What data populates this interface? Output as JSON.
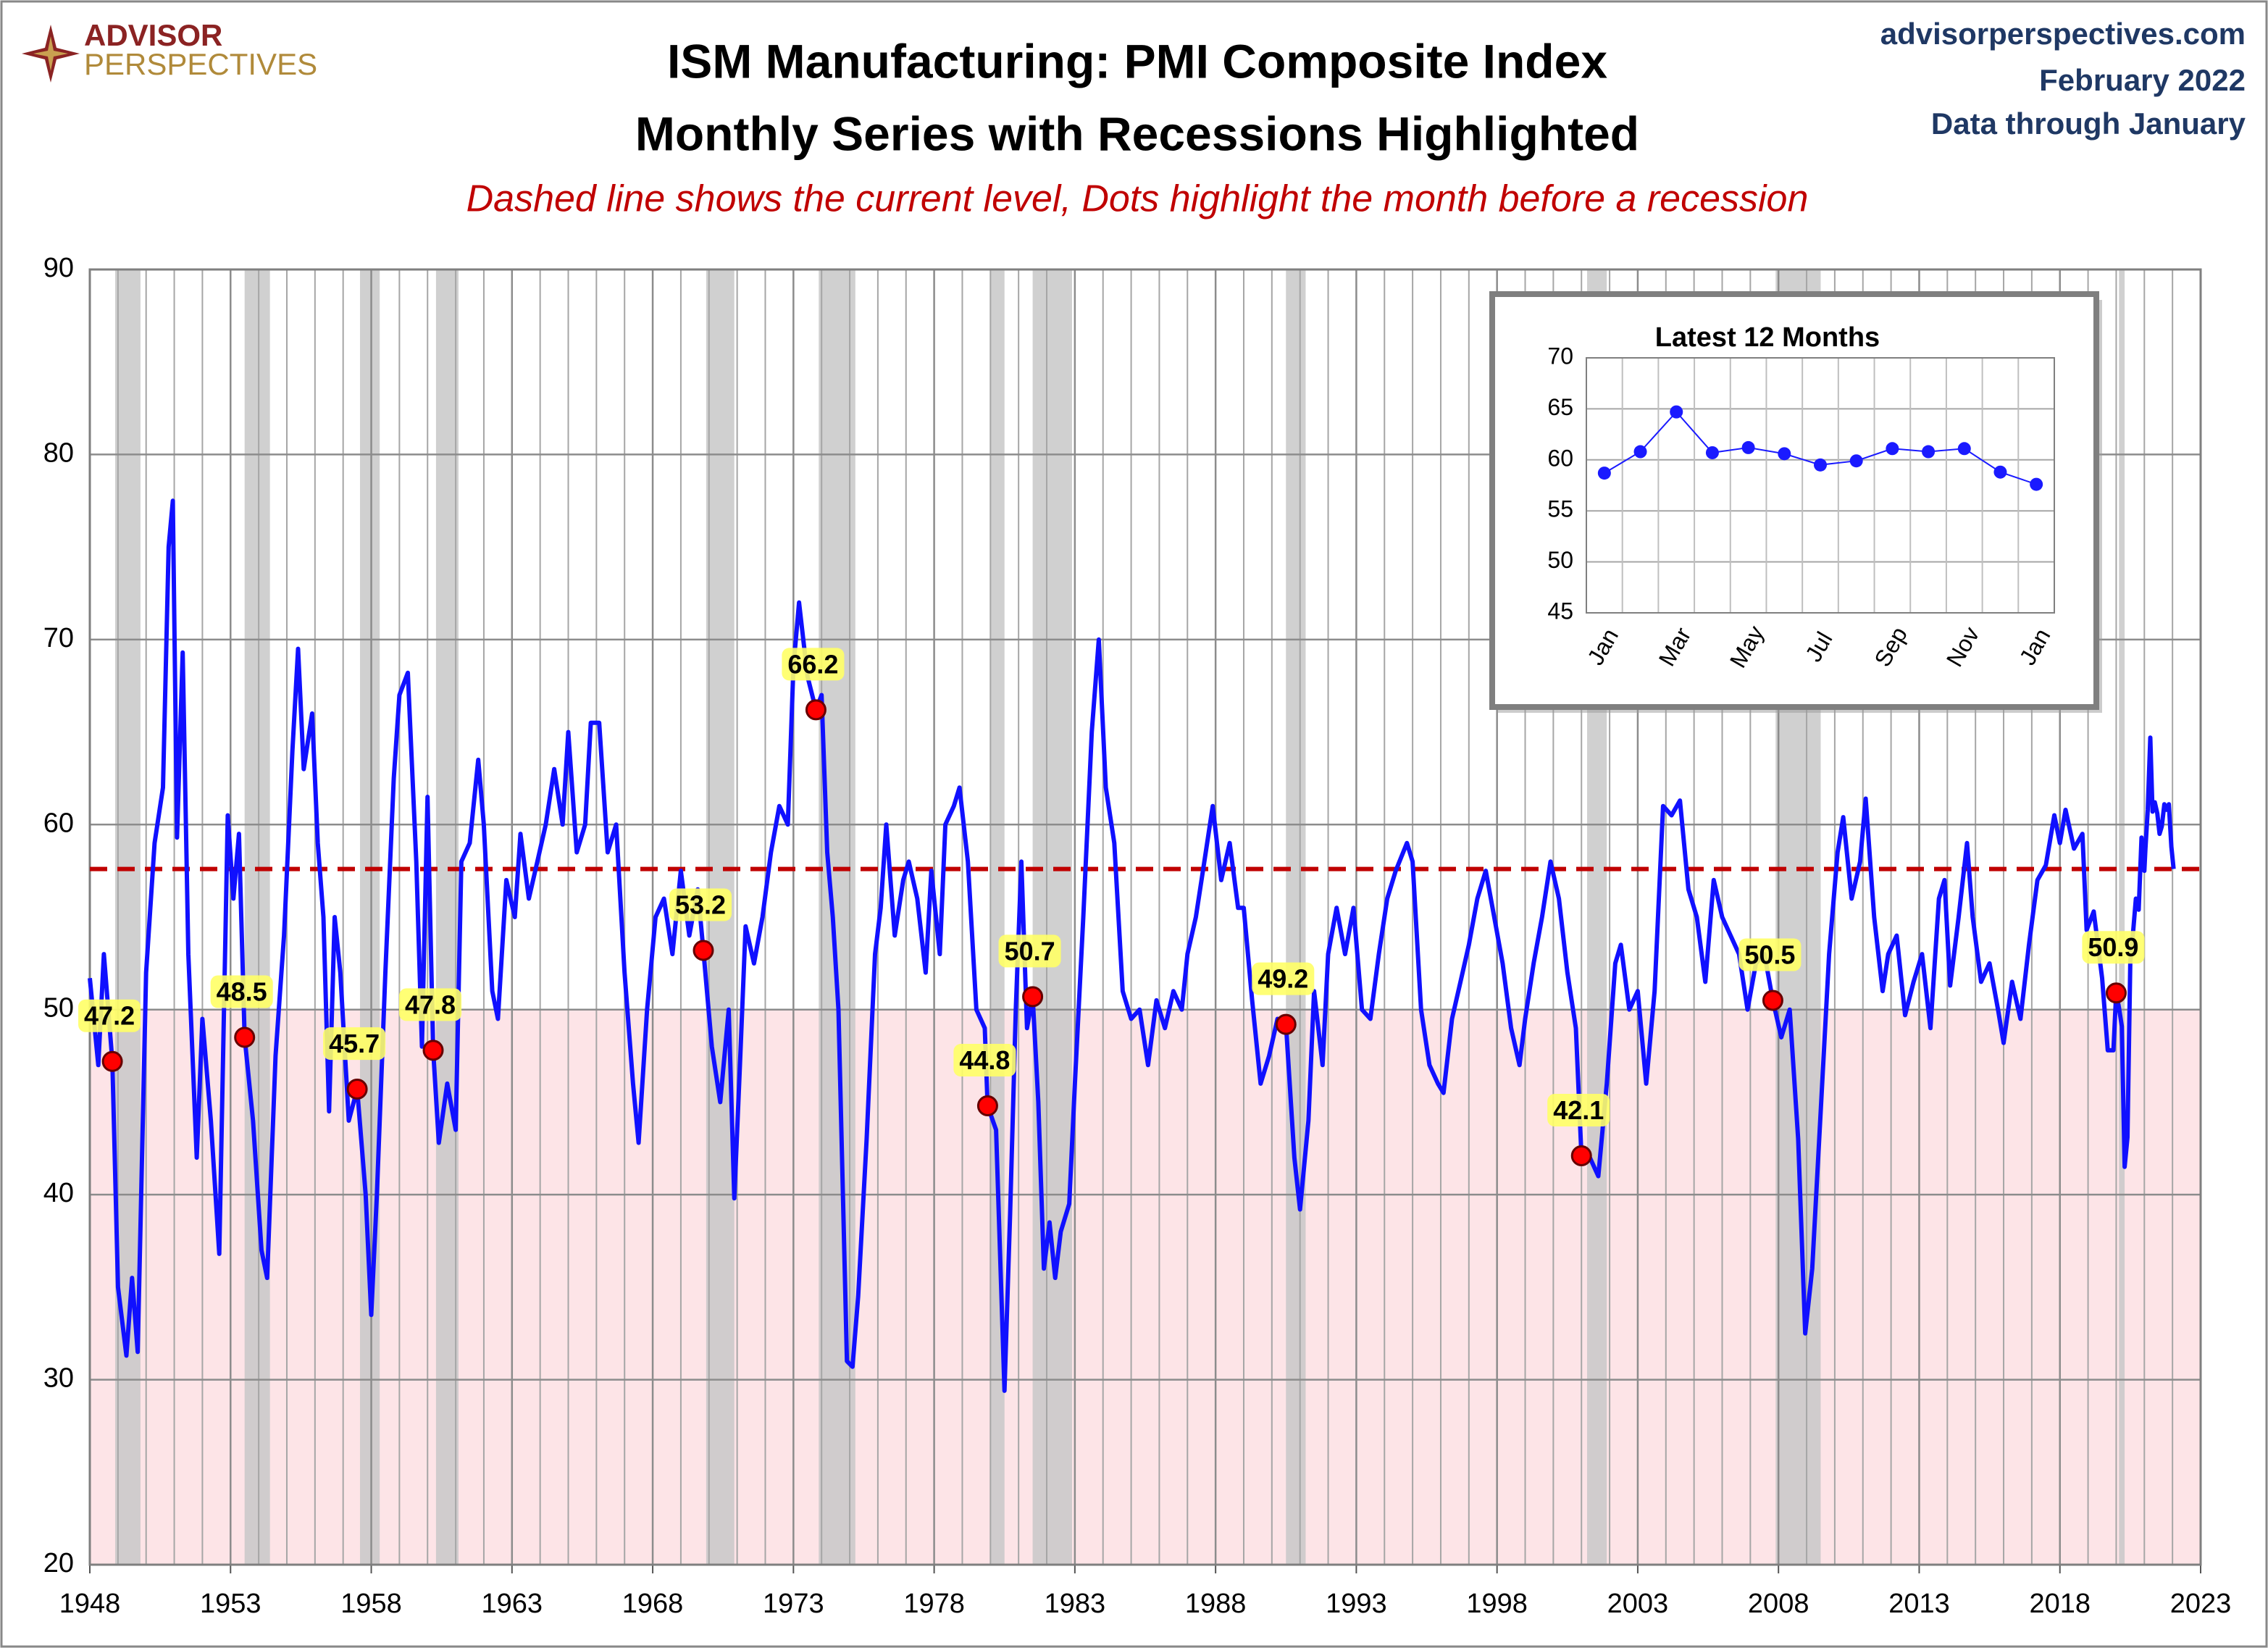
{
  "header": {
    "brand": [
      "ADVISOR",
      "PERSPECTIVES"
    ],
    "site": "advisorperspectives.com",
    "date": "February 2022",
    "data_through": "Data through January"
  },
  "chart_data": [
    {
      "type": "line",
      "title": "ISM Manufacturing: PMI Composite Index",
      "subtitle": "Monthly Series with Recessions Highlighted",
      "note": "Dashed line shows the current level, Dots highlight the month before a recession",
      "color": "#1010ff",
      "xlim": [
        1948,
        2023
      ],
      "xticks": [
        1948,
        1953,
        1958,
        1963,
        1968,
        1973,
        1978,
        1983,
        1988,
        1993,
        1998,
        2003,
        2008,
        2013,
        2018,
        2023
      ],
      "ylim": [
        20,
        90
      ],
      "yticks": [
        20,
        30,
        40,
        50,
        60,
        70,
        80,
        90
      ],
      "grid": true,
      "shaded_below": 50,
      "shaded_color": "#fde4e7",
      "reference_line": 57.6,
      "reference_color": "#c00000",
      "recession_color": "#c8c8c8",
      "recessions": [
        [
          1948.9,
          1949.8
        ],
        [
          1953.5,
          1954.4
        ],
        [
          1957.6,
          1958.3
        ],
        [
          1960.3,
          1961.1
        ],
        [
          1969.9,
          1970.9
        ],
        [
          1973.9,
          1975.2
        ],
        [
          1980.0,
          1980.5
        ],
        [
          1981.5,
          1982.9
        ],
        [
          1990.5,
          1991.2
        ],
        [
          2001.2,
          2001.9
        ],
        [
          2007.9,
          2009.5
        ],
        [
          2020.1,
          2020.3
        ]
      ],
      "x": [
        1948.0,
        1948.3,
        1948.5,
        1948.8,
        1949.0,
        1949.3,
        1949.5,
        1949.7,
        1950.0,
        1950.3,
        1950.6,
        1950.8,
        1950.95,
        1951.1,
        1951.3,
        1951.5,
        1951.8,
        1952.0,
        1952.3,
        1952.6,
        1952.9,
        1953.1,
        1953.3,
        1953.5,
        1953.8,
        1954.1,
        1954.3,
        1954.6,
        1954.9,
        1955.2,
        1955.4,
        1955.6,
        1955.9,
        1956.1,
        1956.3,
        1956.5,
        1956.7,
        1956.9,
        1957.2,
        1957.5,
        1957.8,
        1958.0,
        1958.2,
        1958.5,
        1958.8,
        1959.0,
        1959.3,
        1959.6,
        1959.8,
        1960.0,
        1960.2,
        1960.4,
        1960.7,
        1961.0,
        1961.2,
        1961.5,
        1961.8,
        1962.0,
        1962.3,
        1962.5,
        1962.8,
        1963.1,
        1963.3,
        1963.6,
        1963.9,
        1964.2,
        1964.5,
        1964.8,
        1965.0,
        1965.3,
        1965.6,
        1965.8,
        1966.1,
        1966.4,
        1966.7,
        1967.0,
        1967.3,
        1967.5,
        1967.8,
        1968.1,
        1968.4,
        1968.7,
        1969.0,
        1969.3,
        1969.6,
        1969.8,
        1970.1,
        1970.4,
        1970.7,
        1970.9,
        1971.1,
        1971.3,
        1971.6,
        1971.9,
        1972.2,
        1972.5,
        1972.8,
        1973.0,
        1973.2,
        1973.5,
        1973.8,
        1974.0,
        1974.2,
        1974.4,
        1974.6,
        1974.9,
        1975.1,
        1975.3,
        1975.6,
        1975.9,
        1976.1,
        1976.3,
        1976.6,
        1976.9,
        1977.1,
        1977.4,
        1977.7,
        1977.9,
        1978.2,
        1978.4,
        1978.7,
        1978.9,
        1979.2,
        1979.5,
        1979.8,
        1979.9,
        1980.2,
        1980.5,
        1980.7,
        1980.9,
        1981.1,
        1981.3,
        1981.5,
        1981.7,
        1981.9,
        1982.1,
        1982.3,
        1982.5,
        1982.8,
        1983.0,
        1983.3,
        1983.6,
        1983.85,
        1984.1,
        1984.4,
        1984.7,
        1985.0,
        1985.3,
        1985.6,
        1985.9,
        1986.2,
        1986.5,
        1986.8,
        1987.0,
        1987.3,
        1987.6,
        1987.9,
        1988.2,
        1988.5,
        1988.8,
        1989.0,
        1989.3,
        1989.6,
        1989.9,
        1990.2,
        1990.5,
        1990.8,
        1991.0,
        1991.3,
        1991.5,
        1991.8,
        1992.0,
        1992.3,
        1992.6,
        1992.9,
        1993.2,
        1993.5,
        1993.8,
        1994.1,
        1994.4,
        1994.8,
        1995.0,
        1995.3,
        1995.6,
        1995.9,
        1996.1,
        1996.4,
        1996.7,
        1997.0,
        1997.3,
        1997.6,
        1997.9,
        1998.2,
        1998.5,
        1998.8,
        1999.0,
        1999.3,
        1999.6,
        1999.9,
        2000.2,
        2000.5,
        2000.8,
        2001.0,
        2001.3,
        2001.6,
        2001.9,
        2002.2,
        2002.4,
        2002.7,
        2003.0,
        2003.3,
        2003.6,
        2003.9,
        2004.2,
        2004.5,
        2004.8,
        2005.1,
        2005.4,
        2005.7,
        2006.0,
        2006.3,
        2006.6,
        2006.9,
        2007.2,
        2007.5,
        2007.8,
        2008.1,
        2008.4,
        2008.7,
        2008.95,
        2009.2,
        2009.5,
        2009.8,
        2010.1,
        2010.3,
        2010.6,
        2010.9,
        2011.1,
        2011.4,
        2011.7,
        2011.9,
        2012.2,
        2012.5,
        2012.8,
        2013.1,
        2013.4,
        2013.7,
        2013.9,
        2014.1,
        2014.4,
        2014.7,
        2014.9,
        2015.2,
        2015.5,
        2015.8,
        2016.0,
        2016.3,
        2016.6,
        2016.9,
        2017.2,
        2017.5,
        2017.8,
        2018.0,
        2018.2,
        2018.5,
        2018.8,
        2018.95,
        2019.2,
        2019.5,
        2019.7,
        2019.9,
        2020.0,
        2020.1,
        2020.2,
        2020.3,
        2020.4,
        2020.5,
        2020.6,
        2020.7,
        2020.8,
        2020.9,
        2021.0,
        2021.04,
        2021.12,
        2021.21,
        2021.29,
        2021.37,
        2021.46,
        2021.54,
        2021.62,
        2021.71,
        2021.79,
        2021.87,
        2021.96,
        2022.04
      ],
      "values": [
        51.7,
        47,
        53,
        47.2,
        35,
        31.3,
        35.5,
        31.5,
        52,
        59,
        62,
        75,
        77.5,
        59.3,
        69.3,
        53,
        42,
        49.5,
        44,
        36.8,
        60.5,
        56,
        59.5,
        48.5,
        44,
        37,
        35.5,
        47.5,
        54,
        64,
        69.5,
        63,
        66,
        59,
        55,
        44.5,
        55,
        52,
        44,
        45.7,
        40,
        33.5,
        40,
        52,
        62.5,
        67,
        68.2,
        58,
        48,
        61.5,
        47.8,
        42.8,
        46,
        43.5,
        58,
        59,
        63.5,
        60,
        51,
        49.5,
        57,
        55,
        59.5,
        56,
        58,
        60,
        63,
        60,
        65,
        58.5,
        60,
        65.5,
        65.5,
        58.5,
        60,
        52,
        46,
        42.8,
        50,
        55,
        56,
        53,
        57.5,
        54,
        56.5,
        53.2,
        48,
        45,
        50,
        39.8,
        47,
        54.5,
        52.5,
        55,
        58.5,
        61,
        60,
        68.5,
        72,
        68,
        66.2,
        67,
        58.5,
        55,
        50,
        31,
        30.7,
        34.5,
        43,
        53,
        55.5,
        60,
        54,
        57,
        58,
        56,
        52,
        57.5,
        53,
        60,
        61,
        62,
        58,
        50,
        49,
        44.8,
        43.5,
        29.4,
        39,
        50,
        58,
        49,
        50.7,
        45,
        36,
        38.5,
        35.5,
        38,
        39.5,
        46,
        55,
        65,
        70,
        62,
        59,
        51,
        49.5,
        50,
        47,
        50.5,
        49,
        51,
        50,
        53,
        55,
        58,
        61,
        57,
        59,
        55.5,
        55.5,
        50.5,
        46,
        47.5,
        49.5,
        49.2,
        42,
        39.2,
        44,
        51,
        47,
        53,
        55.5,
        53,
        55.5,
        50,
        49.5,
        53,
        56,
        57.5,
        59,
        58,
        50,
        47,
        46,
        45.5,
        49.5,
        51.5,
        53.5,
        56,
        57.5,
        55,
        52.5,
        49,
        47,
        49.5,
        52.5,
        55,
        58,
        56,
        52,
        49,
        42.1,
        42,
        41,
        46,
        52.5,
        53.5,
        50,
        51,
        46,
        51,
        61,
        60.5,
        61.3,
        56.5,
        55,
        51.5,
        57,
        55,
        54,
        53,
        50,
        52.5,
        53,
        50.5,
        48.5,
        50,
        43,
        32.5,
        36,
        44.5,
        53,
        58.5,
        60.4,
        56,
        58,
        61.4,
        55,
        51,
        53,
        54,
        49.7,
        51.5,
        53,
        49,
        56,
        57,
        51.3,
        55,
        59,
        55,
        51.5,
        52.5,
        50,
        48.2,
        51.5,
        49.5,
        53.5,
        57,
        57.8,
        60.5,
        59,
        60.8,
        58.7,
        59.5,
        54.3,
        55.3,
        51.7,
        47.8,
        47.8,
        50.9,
        50.1,
        49.1,
        41.5,
        43.1,
        52.6,
        54.2,
        56,
        55.4,
        59.3,
        57.5,
        58.7,
        60.8,
        64.7,
        60.7,
        61.2,
        60.6,
        59.5,
        59.9,
        61.1,
        60.8,
        61.1,
        58.8,
        57.6
      ],
      "highlights": {
        "color": "#ff0000",
        "label_color": "#ffff66",
        "x": [
          1948.8,
          1953.5,
          1957.5,
          1960.2,
          1969.8,
          1973.8,
          1979.9,
          1981.5,
          1990.5,
          2001.0,
          2007.8,
          2020.0
        ],
        "values": [
          47.2,
          48.5,
          45.7,
          47.8,
          53.2,
          66.2,
          44.8,
          50.7,
          49.2,
          42.1,
          50.5,
          50.9
        ]
      }
    },
    {
      "type": "line",
      "title": "Latest 12 Months",
      "color": "#1a1aff",
      "categories": [
        "Jan",
        null,
        "Mar",
        null,
        "May",
        null,
        "Jul",
        null,
        "Sep",
        null,
        "Nov",
        null,
        "Jan"
      ],
      "values": [
        58.7,
        60.8,
        64.7,
        60.7,
        61.2,
        60.6,
        59.5,
        59.9,
        61.1,
        60.8,
        61.1,
        58.8,
        57.6
      ],
      "ylim": [
        45,
        70
      ],
      "yticks": [
        45,
        50,
        55,
        60,
        65,
        70
      ],
      "grid": true
    }
  ]
}
